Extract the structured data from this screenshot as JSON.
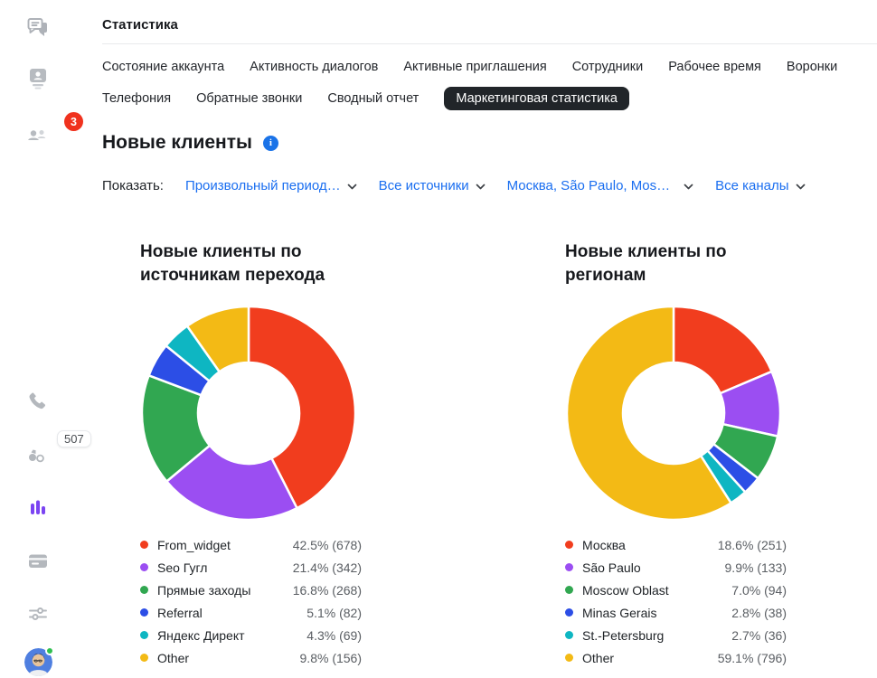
{
  "window": {
    "title": "Статистика"
  },
  "sidebar": {
    "items": [
      "chats",
      "contacts",
      "team",
      "phone",
      "visitors",
      "statistics",
      "billing",
      "settings",
      "profile"
    ],
    "active_item": "statistics",
    "team_badge": "3",
    "visitors_badge": "507"
  },
  "tabs": {
    "row1": [
      "Состояние аккаунта",
      "Активность диалогов",
      "Активные приглашения",
      "Сотрудники",
      "Рабочее время",
      "Воронки"
    ],
    "row2": [
      "Телефония",
      "Обратные звонки",
      "Сводный отчет"
    ],
    "selected": "Маркетинговая статистика"
  },
  "page": {
    "heading": "Новые клиенты"
  },
  "filters": {
    "label": "Показать:",
    "dropdowns": [
      "Произвольный период…",
      "Все источники",
      "Москва, São Paulo, Mos…",
      "Все каналы"
    ]
  },
  "colors": {
    "accent_blue": "#1a6ef0",
    "active_icon_purple": "#7b44f2",
    "badge_red": "#f0321e",
    "selected_tab_bg": "#212529"
  },
  "chart_data": [
    {
      "type": "pie",
      "donut": true,
      "title": "Новые клиенты по источникам перехода",
      "categories": [
        "From_widget",
        "Seo Гугл",
        "Прямые заходы",
        "Referral",
        "Яндекс Директ",
        "Other"
      ],
      "values": [
        678,
        342,
        268,
        82,
        69,
        156
      ],
      "percent_labels": [
        "42.5%",
        "21.4%",
        "16.8%",
        "5.1%",
        "4.3%",
        "9.8%"
      ],
      "colors": [
        "#f13d1e",
        "#9b4ef2",
        "#31a751",
        "#2c4ee6",
        "#0eb6c2",
        "#f3ba15"
      ],
      "start_angle": "top",
      "direction": "clockwise",
      "legend_position": "bottom"
    },
    {
      "type": "pie",
      "donut": true,
      "title": "Новые клиенты по регионам",
      "categories": [
        "Москва",
        "São Paulo",
        "Moscow Oblast",
        "Minas Gerais",
        "St.-Petersburg",
        "Other"
      ],
      "values": [
        251,
        133,
        94,
        38,
        36,
        796
      ],
      "percent_labels": [
        "18.6%",
        "9.9%",
        "7.0%",
        "2.8%",
        "2.7%",
        "59.1%"
      ],
      "colors": [
        "#f13d1e",
        "#9b4ef2",
        "#31a751",
        "#2c4ee6",
        "#0eb6c2",
        "#f3ba15"
      ],
      "start_angle": "top",
      "direction": "clockwise",
      "legend_position": "bottom"
    }
  ]
}
